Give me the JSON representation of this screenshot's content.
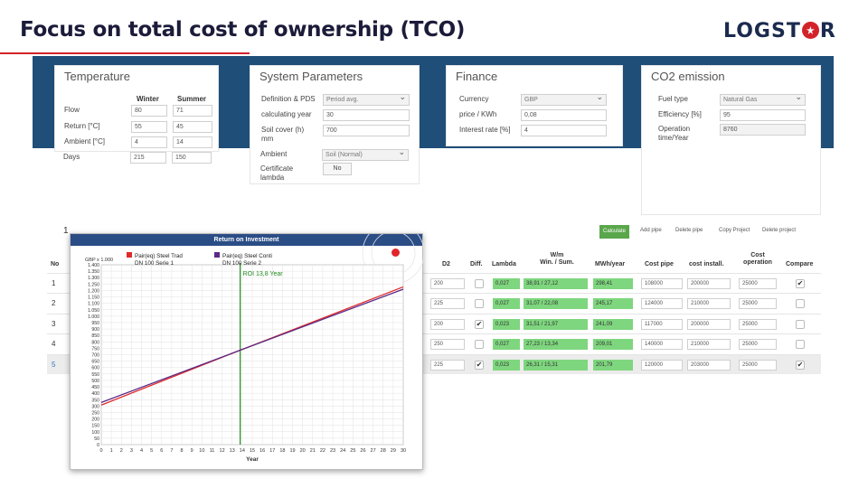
{
  "slide": {
    "title": "Focus on total cost of ownership (TCO)",
    "logo": {
      "pre": "LOGST",
      "post": "R",
      "accent": "#d2232a"
    }
  },
  "temperature": {
    "title": "Temperature",
    "col_winter": "Winter",
    "col_summer": "Summer",
    "rows": [
      {
        "label": "Flow",
        "winter": "80",
        "summer": "71"
      },
      {
        "label": "Return [°C]",
        "winter": "55",
        "summer": "45"
      },
      {
        "label": "Ambient [°C]",
        "winter": "4",
        "summer": "14"
      },
      {
        "label": "Days",
        "winter": "215",
        "summer": "150"
      }
    ]
  },
  "system": {
    "title": "System Parameters",
    "definition_label": "Definition & PDS",
    "definition_value": "Period avg.",
    "calc_year_label": "calculating year",
    "calc_year_value": "30",
    "soil_label": "Soil cover (h) mm",
    "soil_value": "700",
    "ambient_label": "Ambient",
    "ambient_value": "Soil (Normal)",
    "certificate_label": "Certificate lambda",
    "certificate_value": "No"
  },
  "finance": {
    "title": "Finance",
    "currency_label": "Currency",
    "currency_value": "GBP",
    "price_label": "price / KWh",
    "price_value": "0,08",
    "interest_label": "Interest rate [%]",
    "interest_value": "4"
  },
  "co2": {
    "title": "CO2 emission",
    "fuel_label": "Fuel type",
    "fuel_value": "Natural Gas",
    "eff_label": "Efficiency [%]",
    "eff_value": "95",
    "op_label": "Operation time/Year",
    "op_value": "8760"
  },
  "toolbar": {
    "calculate": "Calculate",
    "add_pipe": "Add pipe",
    "delete_pipe": "Delete pipe",
    "copy_project": "Copy Project",
    "delete_project": "Delete project"
  },
  "table": {
    "row_prefix": "1",
    "headers": {
      "no": "No",
      "d2": "D2",
      "diff": "Diff.",
      "lambda": "Lambda",
      "wm": "W/m\nWin. / Sum.",
      "mwh": "MWh/year",
      "cost_pipe": "Cost pipe",
      "cost_install": "cost install.",
      "cost_op": "Cost\noperation",
      "compare": "Compare"
    },
    "rows": [
      {
        "no": "1",
        "d2": "200",
        "diff": false,
        "lambda": "0,027",
        "wm": "38,91 / 27,12",
        "mwh": "298,41",
        "pipe": "108000",
        "install": "200000",
        "op": "25000",
        "compare": true
      },
      {
        "no": "2",
        "d2": "225",
        "diff": false,
        "lambda": "0,027",
        "wm": "31,07 / 22,08",
        "mwh": "245,17",
        "pipe": "124000",
        "install": "210000",
        "op": "25000",
        "compare": false
      },
      {
        "no": "3",
        "d2": "200",
        "diff": true,
        "lambda": "0,023",
        "wm": "31,51 / 21,97",
        "mwh": "241,09",
        "pipe": "117000",
        "install": "200000",
        "op": "25000",
        "compare": false
      },
      {
        "no": "4",
        "d2": "250",
        "diff": false,
        "lambda": "0,027",
        "wm": "27,23 / 13,34",
        "mwh": "209,01",
        "pipe": "140000",
        "install": "210000",
        "op": "25000",
        "compare": false
      },
      {
        "no": "5",
        "d2": "225",
        "diff": true,
        "lambda": "0,023",
        "wm": "26,31 / 15,31",
        "mwh": "201,79",
        "pipe": "120000",
        "install": "203000",
        "op": "25000",
        "compare": true
      }
    ]
  },
  "chart": {
    "window_title": "Return on Investment",
    "unit_label": "GBP x 1.000",
    "xlabel": "Year",
    "roi_label": "ROI 13,8 Year",
    "legend": [
      {
        "name": "Pair(eq) Steel Trad",
        "sub": "DN 100 Serie 1",
        "color": "#e02a2a"
      },
      {
        "name": "Pair(eq) Steel Conti",
        "sub": "DN 100 Serie 2",
        "color": "#5b2a86"
      }
    ]
  },
  "chart_data": {
    "type": "line",
    "title": "Return on Investment",
    "xlabel": "Year",
    "ylabel": "GBP x 1.000",
    "xlim": [
      0,
      30
    ],
    "ylim": [
      0,
      1400
    ],
    "x_ticks": [
      0,
      1,
      2,
      3,
      4,
      5,
      6,
      7,
      8,
      9,
      10,
      11,
      12,
      13,
      14,
      15,
      16,
      17,
      18,
      19,
      20,
      21,
      22,
      23,
      24,
      25,
      26,
      27,
      28,
      29,
      30
    ],
    "y_ticks": [
      0,
      50,
      100,
      150,
      200,
      250,
      300,
      350,
      400,
      450,
      500,
      550,
      600,
      650,
      700,
      750,
      800,
      850,
      900,
      950,
      1000,
      1050,
      1100,
      1150,
      1200,
      1250,
      1300,
      1350,
      1400
    ],
    "grid": true,
    "series": [
      {
        "name": "Pair(eq) Steel Trad DN 100 Serie 1",
        "x": [
          0,
          13.8,
          30
        ],
        "y": [
          308,
          735,
          1228
        ]
      },
      {
        "name": "Pair(eq) Steel Conti DN 100 Serie 2",
        "x": [
          0,
          13.8,
          30
        ],
        "y": [
          328,
          735,
          1210
        ]
      }
    ],
    "annotations": [
      {
        "text": "ROI 13,8 Year",
        "x": 13.8
      }
    ],
    "colors": {
      "series1": "#e02a2a",
      "series2": "#5b2a86",
      "roi_line": "#1e8a1e"
    }
  }
}
